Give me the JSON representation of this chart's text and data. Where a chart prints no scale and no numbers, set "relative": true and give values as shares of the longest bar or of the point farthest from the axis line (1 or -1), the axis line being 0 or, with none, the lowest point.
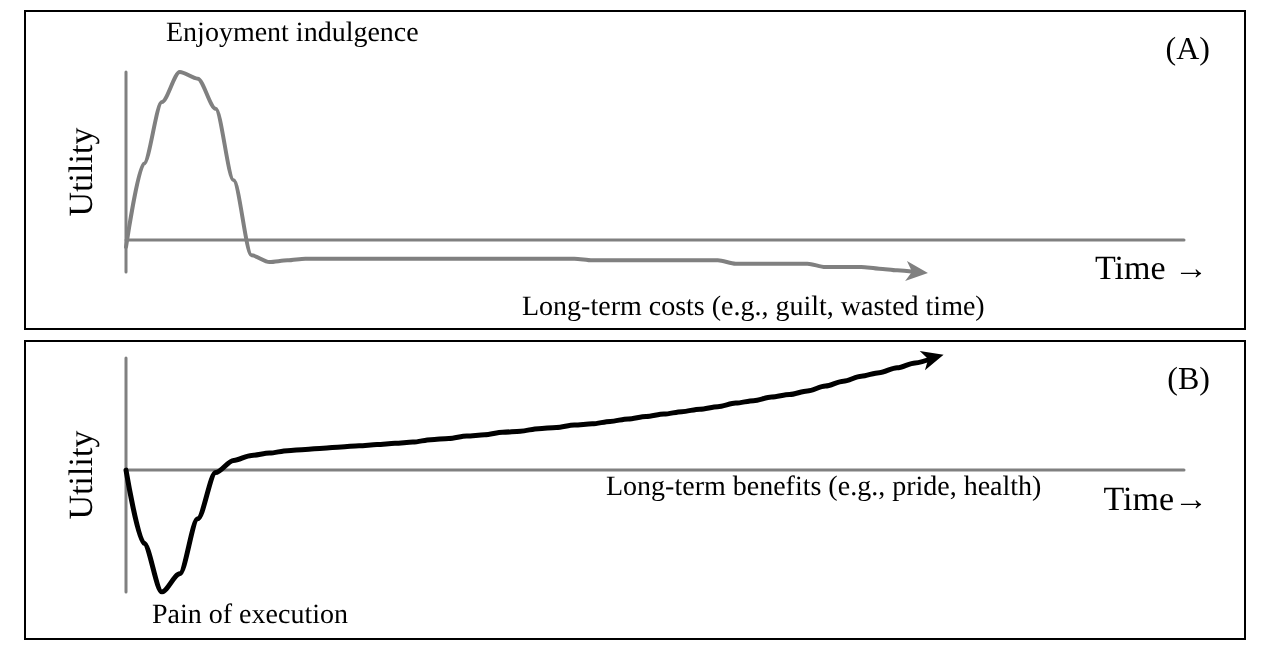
{
  "chart_data": [
    {
      "type": "line",
      "title": "(A)",
      "ylabel": "Utility",
      "xlabel": "Time →",
      "relative": true,
      "categories": [
        null,
        null,
        null,
        null,
        null,
        null,
        null,
        null,
        null,
        null,
        null,
        null,
        null,
        null,
        null,
        null,
        null,
        null,
        null,
        null,
        null,
        null,
        null,
        null,
        null,
        null,
        null,
        null,
        null,
        null,
        null,
        null,
        null,
        null,
        null,
        null,
        null,
        null,
        null,
        null,
        null,
        null,
        null,
        null,
        null,
        null,
        null,
        null,
        null,
        null,
        null,
        null,
        null,
        null,
        null,
        null,
        null,
        null,
        null,
        null
      ],
      "series": [
        {
          "color": "#808080",
          "values": [
            -0.05,
            0.45,
            0.82,
            1,
            0.96,
            0.78,
            0.35,
            -0.1,
            -0.14,
            -0.13,
            -0.12,
            -0.12,
            -0.12,
            -0.12,
            -0.12,
            -0.12,
            -0.12,
            -0.12,
            -0.12,
            -0.12,
            -0.12,
            -0.12,
            -0.12,
            -0.12,
            -0.12,
            -0.12,
            -0.13,
            -0.13,
            -0.13,
            -0.13,
            -0.13,
            -0.13,
            -0.13,
            -0.13,
            -0.15,
            -0.15,
            -0.15,
            -0.15,
            -0.15,
            -0.17,
            -0.17,
            -0.17,
            -0.18,
            -0.19,
            -0.2,
            null,
            null,
            null,
            null,
            null,
            null,
            null,
            null,
            null,
            null,
            null,
            null,
            null,
            null,
            null
          ]
        }
      ],
      "annotations": [
        "Enjoyment indulgence",
        "Long-term costs (e.g., guilt, wasted time)"
      ]
    },
    {
      "type": "line",
      "title": "(B)",
      "ylabel": "Utility",
      "xlabel": "Time→",
      "relative": true,
      "categories": [
        null,
        null,
        null,
        null,
        null,
        null,
        null,
        null,
        null,
        null,
        null,
        null,
        null,
        null,
        null,
        null,
        null,
        null,
        null,
        null,
        null,
        null,
        null,
        null,
        null,
        null,
        null,
        null,
        null,
        null,
        null,
        null,
        null,
        null,
        null,
        null,
        null,
        null,
        null,
        null,
        null,
        null,
        null,
        null,
        null,
        null,
        null,
        null,
        null,
        null,
        null,
        null,
        null,
        null,
        null,
        null,
        null,
        null,
        null,
        null
      ],
      "series": [
        {
          "color": "#000000",
          "values": [
            0,
            -0.6,
            -1,
            -0.85,
            -0.4,
            -0.02,
            0.08,
            0.12,
            0.14,
            0.16,
            0.17,
            0.18,
            0.19,
            0.2,
            0.21,
            0.22,
            0.23,
            0.25,
            0.26,
            0.28,
            0.29,
            0.31,
            0.32,
            0.34,
            0.35,
            0.37,
            0.38,
            0.4,
            0.42,
            0.44,
            0.46,
            0.48,
            0.5,
            0.52,
            0.55,
            0.57,
            0.6,
            0.62,
            0.65,
            0.69,
            0.73,
            0.77,
            0.8,
            0.84,
            0.88,
            0.92,
            null,
            null,
            null,
            null,
            null,
            null,
            null,
            null,
            null,
            null,
            null,
            null,
            null,
            null
          ]
        }
      ],
      "annotations": [
        "Long-term benefits (e.g., pride, health)",
        "Pain of execution"
      ]
    }
  ]
}
